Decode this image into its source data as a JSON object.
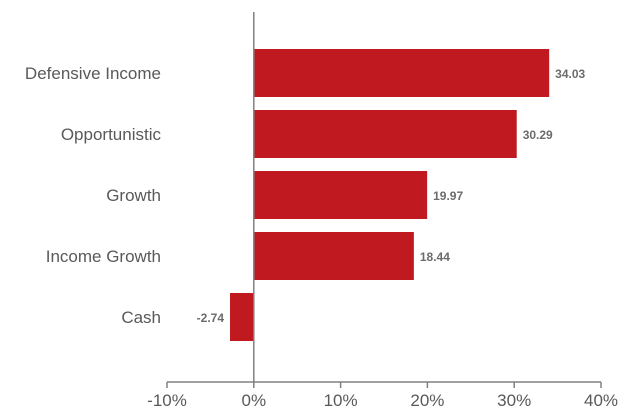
{
  "chart_data": {
    "type": "bar",
    "orientation": "horizontal",
    "categories": [
      "Defensive Income",
      "Opportunistic",
      "Growth",
      "Income Growth",
      "Cash"
    ],
    "values": [
      34.03,
      30.29,
      19.97,
      18.44,
      -2.74
    ],
    "data_labels": [
      "34.03",
      "30.29",
      "19.97",
      "18.44",
      "-2.74"
    ],
    "x_ticks": [
      "-10%",
      "0%",
      "10%",
      "20%",
      "30%",
      "40%"
    ],
    "xlim": [
      -10,
      40
    ],
    "grid": false,
    "legend": "none",
    "title": "",
    "xlabel": "",
    "ylabel": "",
    "colors": {
      "bar": "#c0191f",
      "axis": "#808080",
      "text": "#595959",
      "data_label": "#6b6b6b"
    }
  }
}
